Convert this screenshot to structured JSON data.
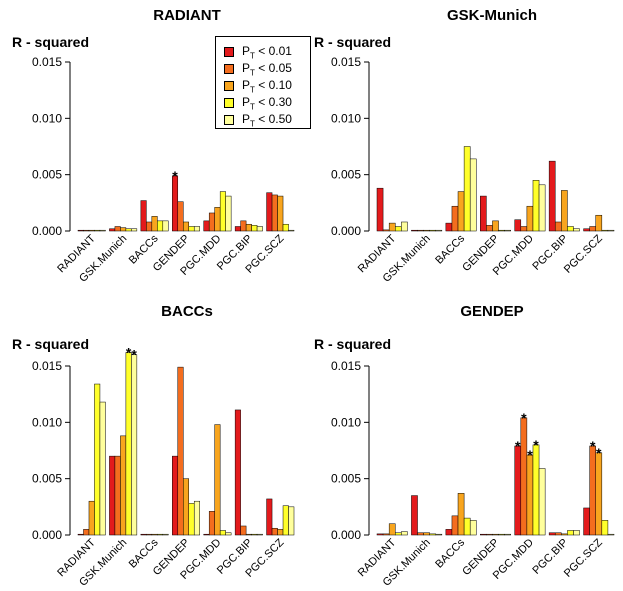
{
  "colors": [
    "#E31A1C",
    "#F46D1E",
    "#F8A51E",
    "#FFFF2A",
    "#FFFF9C"
  ],
  "legend": [
    {
      "sym": "P",
      "sub": "T",
      "rest": " < 0.01"
    },
    {
      "sym": "P",
      "sub": "T",
      "rest": " < 0.05"
    },
    {
      "sym": "P",
      "sub": "T",
      "rest": " < 0.10"
    },
    {
      "sym": "P",
      "sub": "T",
      "rest": " < 0.30"
    },
    {
      "sym": "P",
      "sub": "T",
      "rest": " < 0.50"
    }
  ],
  "chart_data": [
    {
      "type": "bar",
      "title": "RADIANT",
      "ylabel": "R - squared",
      "ylim": [
        0,
        0.015
      ],
      "yticks": [
        "0.000",
        "0.005",
        "0.010",
        "0.015"
      ],
      "categories": [
        "RADIANT",
        "GSK.Munich",
        "BACCs",
        "GENDEP",
        "PGC.MDD",
        "PGC.BIP",
        "PGC.SCZ"
      ],
      "values": [
        [
          0,
          0,
          0,
          0,
          0
        ],
        [
          0.0002,
          0.0004,
          0.0003,
          0.0002,
          0.0002
        ],
        [
          0.0027,
          0.0008,
          0.0013,
          0.0009,
          0.0009
        ],
        [
          0.0049,
          0.0026,
          0.0008,
          0.0004,
          0.0004
        ],
        [
          0.0009,
          0.0016,
          0.0021,
          0.0035,
          0.0031
        ],
        [
          0.0004,
          0.0009,
          0.0006,
          0.0005,
          0.0004
        ],
        [
          0.0034,
          0.0032,
          0.0031,
          0.0006,
          0
        ]
      ],
      "annotations": [
        {
          "category": 3,
          "bar": 0,
          "text": "*"
        }
      ]
    },
    {
      "type": "bar",
      "title": "GSK-Munich",
      "ylabel": "R - squared",
      "ylim": [
        0,
        0.015
      ],
      "yticks": [
        "0.000",
        "0.005",
        "0.010",
        "0.015"
      ],
      "categories": [
        "RADIANT",
        "GSK.Munich",
        "BACCs",
        "GENDEP",
        "PGC.MDD",
        "PGC.BIP",
        "PGC.SCZ"
      ],
      "values": [
        [
          0.0038,
          0.0001,
          0.0007,
          0.0004,
          0.0008
        ],
        [
          0,
          0,
          0,
          0,
          0
        ],
        [
          0.0007,
          0.0022,
          0.0035,
          0.0075,
          0.0064
        ],
        [
          0.0031,
          0.0005,
          0.0009,
          0,
          0
        ],
        [
          0.001,
          0.0004,
          0.0022,
          0.0045,
          0.0041
        ],
        [
          0.0062,
          0.0008,
          0.0036,
          0.0004,
          0.0002
        ],
        [
          0.0002,
          0.0004,
          0.0014,
          0,
          0
        ]
      ],
      "annotations": []
    },
    {
      "type": "bar",
      "title": "BACCs",
      "ylabel": "R - squared",
      "ylim": [
        0,
        0.015
      ],
      "yticks": [
        "0.000",
        "0.005",
        "0.010",
        "0.015"
      ],
      "categories": [
        "RADIANT",
        "GSK.Munich",
        "BACCs",
        "GENDEP",
        "PGC.MDD",
        "PGC.BIP",
        "PGC.SCZ"
      ],
      "values": [
        [
          0,
          0.0005,
          0.003,
          0.0134,
          0.0118
        ],
        [
          0.007,
          0.007,
          0.0088,
          0.0162,
          0.016
        ],
        [
          0,
          0,
          0,
          0,
          0
        ],
        [
          0.007,
          0.0149,
          0.005,
          0.0028,
          0.003
        ],
        [
          0,
          0.0021,
          0.0098,
          0.0004,
          0.0002
        ],
        [
          0.0111,
          0.0008,
          0,
          0,
          0
        ],
        [
          0.0032,
          0.0006,
          0.0005,
          0.0026,
          0.0025
        ]
      ],
      "annotations": [
        {
          "category": 1,
          "bar": 3,
          "text": "*"
        },
        {
          "category": 1,
          "bar": 4,
          "text": "*"
        }
      ]
    },
    {
      "type": "bar",
      "title": "GENDEP",
      "ylabel": "R - squared",
      "ylim": [
        0,
        0.015
      ],
      "yticks": [
        "0.000",
        "0.005",
        "0.010",
        "0.015"
      ],
      "categories": [
        "RADIANT",
        "GSK.Munich",
        "BACCs",
        "GENDEP",
        "PGC.MDD",
        "PGC.BIP",
        "PGC.SCZ"
      ],
      "values": [
        [
          0.0001,
          0.0001,
          0.001,
          0.0002,
          0.0003
        ],
        [
          0.0035,
          0.0002,
          0.0002,
          0.0001,
          0
        ],
        [
          0.0005,
          0.0017,
          0.0037,
          0.0015,
          0.0013
        ],
        [
          0,
          0,
          0,
          0,
          0
        ],
        [
          0.0079,
          0.0104,
          0.0071,
          0.008,
          0.0059
        ],
        [
          0.0002,
          0.0002,
          0.0001,
          0.0004,
          0.0004
        ],
        [
          0.0024,
          0.0079,
          0.0073,
          0.0013,
          0
        ]
      ],
      "annotations": [
        {
          "category": 4,
          "bar": 0,
          "text": "*"
        },
        {
          "category": 4,
          "bar": 1,
          "text": "*"
        },
        {
          "category": 4,
          "bar": 2,
          "text": "*"
        },
        {
          "category": 4,
          "bar": 3,
          "text": "*"
        },
        {
          "category": 6,
          "bar": 1,
          "text": "*"
        },
        {
          "category": 6,
          "bar": 2,
          "text": "*"
        }
      ]
    }
  ]
}
